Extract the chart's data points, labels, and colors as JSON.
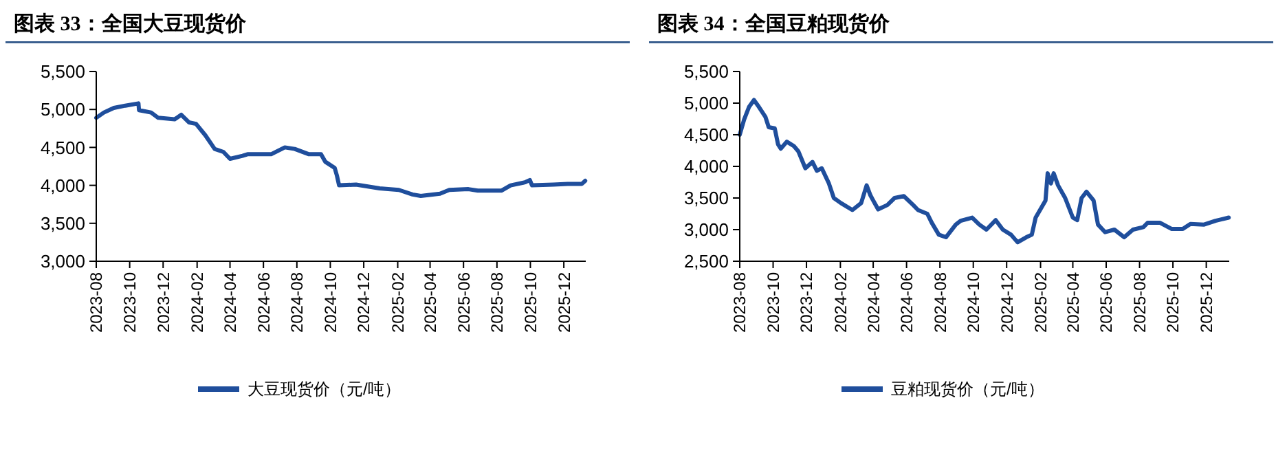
{
  "chart_data": [
    {
      "type": "line",
      "title": "图表 33：全国大豆现货价",
      "legend": "bottom",
      "xlim": [
        "2023-08-01",
        "2026-01-10"
      ],
      "xticks": [
        "2023-08",
        "2023-10",
        "2023-12",
        "2024-02",
        "2024-04",
        "2024-06",
        "2024-08",
        "2024-10",
        "2024-12",
        "2025-02",
        "2025-04",
        "2025-06",
        "2025-08",
        "2025-10",
        "2025-12"
      ],
      "ylim": [
        3000,
        5500
      ],
      "yticks": [
        {
          "value": 3000,
          "label": "3,000"
        },
        {
          "value": 3500,
          "label": "3,500"
        },
        {
          "value": 4000,
          "label": "4,000"
        },
        {
          "value": 4500,
          "label": "4,500"
        },
        {
          "value": 5000,
          "label": "5,000"
        },
        {
          "value": 5500,
          "label": "5,500"
        }
      ],
      "x": [
        "2023-08-01",
        "2023-08-15",
        "2023-09-02",
        "2023-09-23",
        "2023-10-17",
        "2023-10-18",
        "2023-11-09",
        "2023-11-22",
        "2023-12-22",
        "2024-01-03",
        "2024-01-17",
        "2024-01-30",
        "2024-02-16",
        "2024-03-04",
        "2024-03-20",
        "2024-04-01",
        "2024-04-24",
        "2024-05-03",
        "2024-06-15",
        "2024-07-10",
        "2024-07-28",
        "2024-08-23",
        "2024-09-14",
        "2024-09-22",
        "2024-10-09",
        "2024-10-13",
        "2024-10-17",
        "2024-11-17",
        "2024-12-30",
        "2025-02-03",
        "2025-02-28",
        "2025-03-15",
        "2025-04-19",
        "2025-05-06",
        "2025-06-10",
        "2025-06-27",
        "2025-08-09",
        "2025-08-26",
        "2025-09-21",
        "2025-09-30",
        "2025-10-04",
        "2025-11-12",
        "2025-12-08",
        "2026-01-03",
        "2026-01-09"
      ],
      "series": [
        {
          "name": "大豆现货价（元/吨）",
          "color": "#1f4e9c",
          "values": [
            4890,
            4960,
            5020,
            5050,
            5080,
            4990,
            4960,
            4890,
            4870,
            4930,
            4830,
            4810,
            4660,
            4480,
            4440,
            4350,
            4390,
            4410,
            4410,
            4500,
            4480,
            4410,
            4410,
            4310,
            4230,
            4130,
            4000,
            4010,
            3960,
            3940,
            3880,
            3860,
            3890,
            3940,
            3950,
            3930,
            3930,
            4000,
            4040,
            4070,
            4000,
            4010,
            4020,
            4020,
            4060
          ]
        }
      ]
    },
    {
      "type": "line",
      "title": "图表 34：全国豆粕现货价",
      "legend": "bottom",
      "xlim": [
        "2023-08-01",
        "2026-01-12"
      ],
      "xticks": [
        "2023-08",
        "2023-10",
        "2023-12",
        "2024-02",
        "2024-04",
        "2024-06",
        "2024-08",
        "2024-10",
        "2024-12",
        "2025-02",
        "2025-04",
        "2025-06",
        "2025-08",
        "2025-10",
        "2025-12"
      ],
      "ylim": [
        2500,
        5500
      ],
      "yticks": [
        {
          "value": 2500,
          "label": "2,500"
        },
        {
          "value": 3000,
          "label": "3,000"
        },
        {
          "value": 3500,
          "label": "3,500"
        },
        {
          "value": 4000,
          "label": "4,000"
        },
        {
          "value": 4500,
          "label": "4,500"
        },
        {
          "value": 5000,
          "label": "5,000"
        },
        {
          "value": 5500,
          "label": "5,500"
        }
      ],
      "x": [
        "2023-08-01",
        "2023-08-09",
        "2023-08-18",
        "2023-08-27",
        "2023-09-05",
        "2023-09-17",
        "2023-09-23",
        "2023-10-04",
        "2023-10-10",
        "2023-10-15",
        "2023-10-26",
        "2023-11-08",
        "2023-11-16",
        "2023-11-29",
        "2023-12-12",
        "2023-12-20",
        "2023-12-29",
        "2024-01-11",
        "2024-01-20",
        "2024-02-02",
        "2024-02-23",
        "2024-03-10",
        "2024-03-20",
        "2024-03-27",
        "2024-04-10",
        "2024-04-27",
        "2024-05-10",
        "2024-05-27",
        "2024-06-13",
        "2024-06-22",
        "2024-07-09",
        "2024-07-17",
        "2024-07-30",
        "2024-08-12",
        "2024-08-30",
        "2024-09-08",
        "2024-09-29",
        "2024-10-12",
        "2024-10-25",
        "2024-11-11",
        "2024-11-24",
        "2024-12-09",
        "2024-12-21",
        "2025-01-06",
        "2025-01-16",
        "2025-01-23",
        "2025-02-10",
        "2025-02-14",
        "2025-02-20",
        "2025-02-25",
        "2025-03-05",
        "2025-03-18",
        "2025-04-01",
        "2025-04-09",
        "2025-04-17",
        "2025-04-26",
        "2025-05-09",
        "2025-05-17",
        "2025-05-30",
        "2025-06-16",
        "2025-07-04",
        "2025-07-20",
        "2025-08-08",
        "2025-08-16",
        "2025-09-07",
        "2025-09-29",
        "2025-10-19",
        "2025-11-02",
        "2025-11-27",
        "2025-12-18",
        "2026-01-11"
      ],
      "series": [
        {
          "name": "豆粕现货价（元/吨）",
          "color": "#1f4e9c",
          "values": [
            4500,
            4740,
            4940,
            5050,
            4940,
            4780,
            4620,
            4600,
            4350,
            4280,
            4390,
            4320,
            4240,
            3970,
            4070,
            3930,
            3970,
            3730,
            3500,
            3420,
            3310,
            3420,
            3700,
            3540,
            3320,
            3390,
            3500,
            3530,
            3390,
            3310,
            3250,
            3110,
            2920,
            2880,
            3080,
            3140,
            3190,
            3080,
            3000,
            3150,
            3000,
            2920,
            2800,
            2880,
            2920,
            3190,
            3460,
            3890,
            3730,
            3890,
            3700,
            3500,
            3190,
            3150,
            3500,
            3600,
            3460,
            3080,
            2960,
            3000,
            2880,
            3000,
            3040,
            3110,
            3110,
            3010,
            3010,
            3090,
            3080,
            3140,
            3190
          ]
        }
      ]
    }
  ]
}
